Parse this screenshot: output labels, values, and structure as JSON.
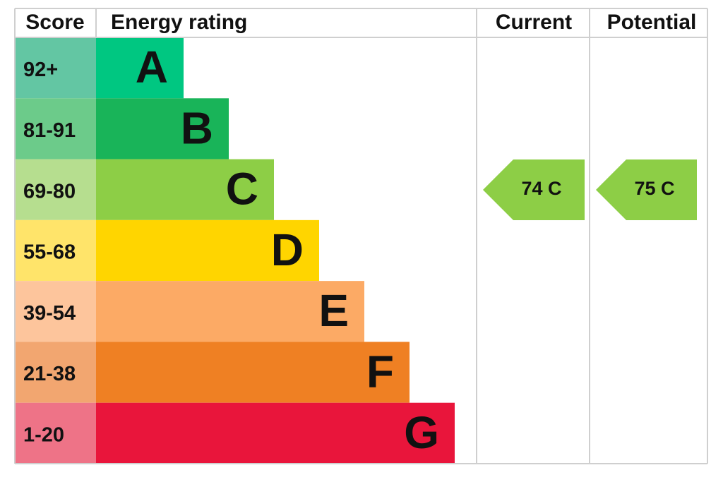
{
  "header": {
    "score": "Score",
    "rating": "Energy rating",
    "current": "Current",
    "potential": "Potential"
  },
  "rows": [
    {
      "score": "92+",
      "band": "A"
    },
    {
      "score": "81-91",
      "band": "B"
    },
    {
      "score": "69-80",
      "band": "C"
    },
    {
      "score": "55-68",
      "band": "D"
    },
    {
      "score": "39-54",
      "band": "E"
    },
    {
      "score": "21-38",
      "band": "F"
    },
    {
      "score": "1-20",
      "band": "G"
    }
  ],
  "current": "74 C",
  "potential": "75 C"
}
